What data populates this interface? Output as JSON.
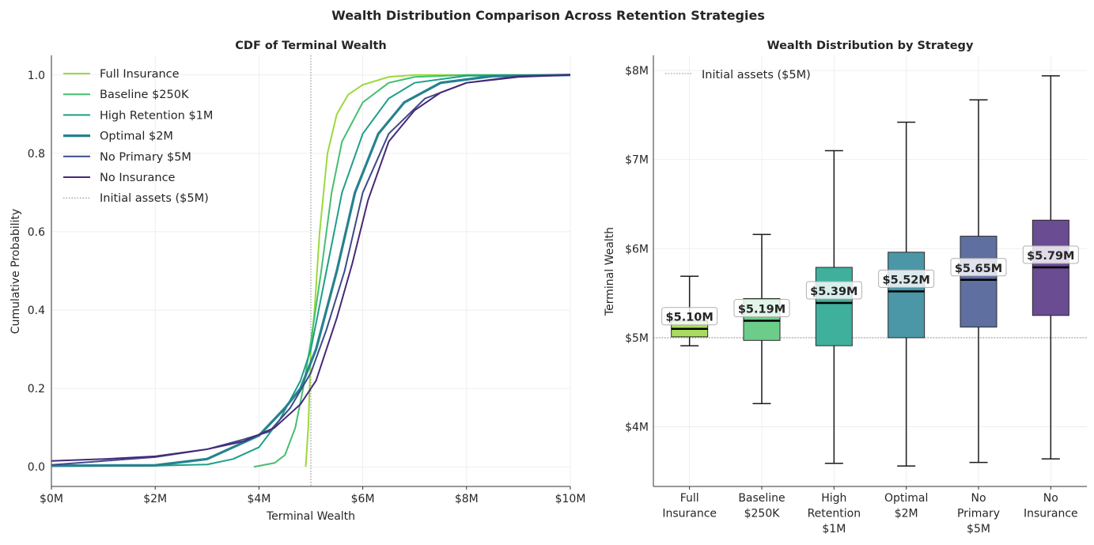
{
  "title": "Wealth Distribution Comparison Across Retention Strategies",
  "chart_data": [
    {
      "type": "line",
      "title": "CDF of Terminal Wealth",
      "xlabel": "Terminal Wealth",
      "ylabel": "Cumulative Probability",
      "xlim": [
        0,
        10
      ],
      "ylim": [
        -0.05,
        1.05
      ],
      "x_unit": "$M",
      "xticks": [
        "$0M",
        "$2M",
        "$4M",
        "$6M",
        "$8M",
        "$10M"
      ],
      "xtick_values": [
        0,
        2,
        4,
        6,
        8,
        10
      ],
      "yticks": [
        "0.0",
        "0.2",
        "0.4",
        "0.6",
        "0.8",
        "1.0"
      ],
      "ytick_values": [
        0,
        0.2,
        0.4,
        0.6,
        0.8,
        1.0
      ],
      "grid": true,
      "legend_placement": "top-left",
      "reference_line": {
        "x": 5,
        "label": "Initial assets ($5M)",
        "color": "#808080",
        "style": "dotted"
      },
      "series": [
        {
          "name": "Full Insurance",
          "color": "#9bd93c",
          "points": [
            [
              4.9,
              0
            ],
            [
              4.95,
              0.1
            ],
            [
              5.0,
              0.3
            ],
            [
              5.07,
              0.4
            ],
            [
              5.17,
              0.6
            ],
            [
              5.32,
              0.8
            ],
            [
              5.5,
              0.9
            ],
            [
              5.72,
              0.95
            ],
            [
              6.0,
              0.975
            ],
            [
              6.5,
              0.995
            ],
            [
              7,
              1.0
            ],
            [
              10,
              1.0
            ]
          ]
        },
        {
          "name": "Baseline $250K",
          "color": "#44bf70",
          "points": [
            [
              3.9,
              0
            ],
            [
              4.3,
              0.01
            ],
            [
              4.5,
              0.03
            ],
            [
              4.7,
              0.1
            ],
            [
              4.85,
              0.2
            ],
            [
              5.0,
              0.32
            ],
            [
              5.2,
              0.5
            ],
            [
              5.4,
              0.7
            ],
            [
              5.6,
              0.83
            ],
            [
              6.0,
              0.93
            ],
            [
              6.5,
              0.98
            ],
            [
              7,
              0.995
            ],
            [
              8,
              1.0
            ],
            [
              10,
              1.0
            ]
          ]
        },
        {
          "name": "High Retention $1M",
          "color": "#1f9e89",
          "points": [
            [
              0,
              0.002
            ],
            [
              2,
              0.003
            ],
            [
              3,
              0.006
            ],
            [
              3.5,
              0.02
            ],
            [
              4,
              0.05
            ],
            [
              4.4,
              0.12
            ],
            [
              4.8,
              0.22
            ],
            [
              5.0,
              0.3
            ],
            [
              5.3,
              0.5
            ],
            [
              5.6,
              0.7
            ],
            [
              6.0,
              0.85
            ],
            [
              6.5,
              0.94
            ],
            [
              7,
              0.98
            ],
            [
              8,
              0.998
            ],
            [
              10,
              1.0
            ]
          ]
        },
        {
          "name": "Optimal $2M",
          "color": "#26828e",
          "thick": true,
          "points": [
            [
              0,
              0.003
            ],
            [
              2,
              0.004
            ],
            [
              3,
              0.02
            ],
            [
              3.5,
              0.05
            ],
            [
              4,
              0.08
            ],
            [
              4.5,
              0.15
            ],
            [
              4.8,
              0.2
            ],
            [
              5.1,
              0.3
            ],
            [
              5.5,
              0.5
            ],
            [
              5.85,
              0.7
            ],
            [
              6.3,
              0.85
            ],
            [
              6.8,
              0.93
            ],
            [
              7.5,
              0.98
            ],
            [
              8.5,
              0.997
            ],
            [
              10,
              1.0
            ]
          ]
        },
        {
          "name": "No Primary $5M",
          "color": "#3e4a89",
          "points": [
            [
              0,
              0.005
            ],
            [
              1,
              0.015
            ],
            [
              2,
              0.025
            ],
            [
              3,
              0.045
            ],
            [
              3.7,
              0.07
            ],
            [
              4.2,
              0.09
            ],
            [
              4.6,
              0.15
            ],
            [
              5,
              0.24
            ],
            [
              5.3,
              0.35
            ],
            [
              5.65,
              0.5
            ],
            [
              6.0,
              0.7
            ],
            [
              6.5,
              0.85
            ],
            [
              7.2,
              0.94
            ],
            [
              8,
              0.98
            ],
            [
              9,
              0.997
            ],
            [
              10,
              1.0
            ]
          ]
        },
        {
          "name": "No Insurance",
          "color": "#482878",
          "points": [
            [
              0,
              0.015
            ],
            [
              1,
              0.02
            ],
            [
              2,
              0.027
            ],
            [
              3,
              0.045
            ],
            [
              3.7,
              0.065
            ],
            [
              4.3,
              0.1
            ],
            [
              4.8,
              0.16
            ],
            [
              5.1,
              0.22
            ],
            [
              5.5,
              0.38
            ],
            [
              5.8,
              0.52
            ],
            [
              6.1,
              0.68
            ],
            [
              6.5,
              0.83
            ],
            [
              7,
              0.91
            ],
            [
              7.5,
              0.955
            ],
            [
              8,
              0.98
            ],
            [
              9,
              0.995
            ],
            [
              10,
              1.0
            ]
          ]
        }
      ]
    },
    {
      "type": "box",
      "title": "Wealth Distribution by Strategy",
      "xlabel": "",
      "ylabel": "Terminal Wealth",
      "ylim": [
        3.33,
        8.17
      ],
      "y_unit": "$M",
      "yticks": [
        "$4M",
        "$5M",
        "$6M",
        "$7M",
        "$8M"
      ],
      "ytick_values": [
        4,
        5,
        6,
        7,
        8
      ],
      "grid": true,
      "legend_placement": "top-left",
      "reference_line": {
        "y": 5,
        "label": "Initial assets ($5M)",
        "color": "#808080",
        "style": "dotted"
      },
      "categories": [
        {
          "label": [
            "Full",
            "Insurance"
          ],
          "fill": "#a9dc5e",
          "whisker_low": 4.91,
          "q1": 5.01,
          "median": 5.1,
          "q3": 5.19,
          "whisker_high": 5.69,
          "median_label": "$5.10M"
        },
        {
          "label": [
            "Baseline",
            "$250K"
          ],
          "fill": "#6ccd8a",
          "whisker_low": 4.26,
          "q1": 4.97,
          "median": 5.19,
          "q3": 5.44,
          "whisker_high": 6.16,
          "median_label": "$5.19M"
        },
        {
          "label": [
            "High",
            "Retention",
            "$1M"
          ],
          "fill": "#3fb09c",
          "whisker_low": 3.59,
          "q1": 4.91,
          "median": 5.39,
          "q3": 5.79,
          "whisker_high": 7.1,
          "median_label": "$5.39M"
        },
        {
          "label": [
            "Optimal",
            "$2M"
          ],
          "fill": "#4b97a8",
          "whisker_low": 3.56,
          "q1": 5.0,
          "median": 5.52,
          "q3": 5.96,
          "whisker_high": 7.42,
          "median_label": "$5.52M"
        },
        {
          "label": [
            "No",
            "Primary",
            "$5M"
          ],
          "fill": "#5e6fa0",
          "whisker_low": 3.6,
          "q1": 5.12,
          "median": 5.65,
          "q3": 6.14,
          "whisker_high": 7.67,
          "median_label": "$5.65M"
        },
        {
          "label": [
            "No",
            "Insurance"
          ],
          "fill": "#6a4c93",
          "whisker_low": 3.64,
          "q1": 5.25,
          "median": 5.79,
          "q3": 6.32,
          "whisker_high": 7.94,
          "median_label": "$5.79M"
        }
      ]
    }
  ]
}
